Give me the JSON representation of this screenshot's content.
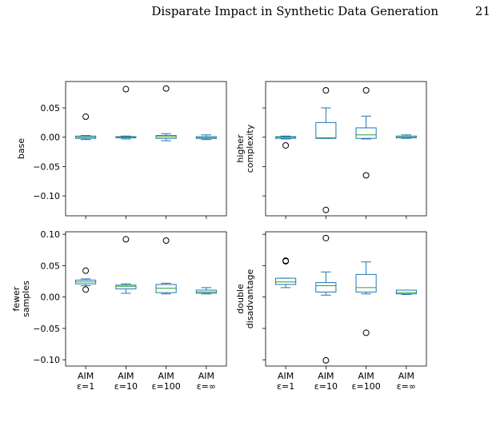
{
  "running_head": "Disparate Impact in Synthetic Data Generation",
  "page_number": "21",
  "chart_data": [
    {
      "type": "box",
      "ylabel": [
        "base"
      ],
      "box_color": "#1f77b4",
      "median_color": "#2ca02c",
      "ylim": [
        -0.134,
        0.095
      ],
      "yticks": [
        {
          "value": 0.05,
          "label": "0.05"
        },
        {
          "value": 0,
          "label": "0.00"
        },
        {
          "value": -0.05,
          "label": "−0.05"
        },
        {
          "value": -0.1,
          "label": "−0.10"
        }
      ],
      "boxes": [
        {
          "whislo": -0.004,
          "q1": -0.002,
          "med": 0,
          "q3": 0.002,
          "whishi": 0.003,
          "fliers": [
            0.035
          ]
        },
        {
          "whislo": -0.003,
          "q1": -0.001,
          "med": 0,
          "q3": 0.001,
          "whishi": 0.002,
          "fliers": [
            0.082
          ]
        },
        {
          "whislo": -0.006,
          "q1": -0.002,
          "med": 0.001,
          "q3": 0.003,
          "whishi": 0.006,
          "fliers": [
            0.083
          ]
        },
        {
          "whislo": -0.004,
          "q1": -0.002,
          "med": -0.001,
          "q3": 0.001,
          "whishi": 0.004,
          "fliers": []
        }
      ]
    },
    {
      "type": "box",
      "ylabel": [
        "higher",
        "complexity"
      ],
      "box_color": "#1f77b4",
      "median_color": "#2ca02c",
      "ylim": [
        -0.134,
        0.095
      ],
      "yticks": [
        0.05,
        0,
        -0.05,
        -0.1
      ],
      "boxes": [
        {
          "whislo": -0.003,
          "q1": -0.002,
          "med": 0,
          "q3": 0.001,
          "whishi": 0.002,
          "fliers": [
            -0.014
          ]
        },
        {
          "whislo": -0.002,
          "q1": -0.002,
          "med": -0.001,
          "q3": 0.025,
          "whishi": 0.05,
          "fliers": [
            0.08,
            -0.124
          ]
        },
        {
          "whislo": -0.003,
          "q1": -0.002,
          "med": 0.004,
          "q3": 0.016,
          "whishi": 0.036,
          "fliers": [
            0.08,
            -0.065
          ]
        },
        {
          "whislo": -0.002,
          "q1": -0.001,
          "med": 0,
          "q3": 0.002,
          "whishi": 0.004,
          "fliers": []
        }
      ]
    },
    {
      "type": "box",
      "ylabel": [
        "fewer",
        "samples"
      ],
      "box_color": "#1f77b4",
      "median_color": "#2ca02c",
      "ylim": [
        -0.11,
        0.104
      ],
      "yticks": [
        {
          "value": 0.1,
          "label": "0.10"
        },
        {
          "value": 0.05,
          "label": "0.05"
        },
        {
          "value": 0,
          "label": "0.00"
        },
        {
          "value": -0.05,
          "label": "−0.05"
        },
        {
          "value": -0.1,
          "label": "−0.10"
        }
      ],
      "categories": [
        [
          "AIM",
          "ε=1"
        ],
        [
          "AIM",
          "ε=10"
        ],
        [
          "AIM",
          "ε=100"
        ],
        [
          "AIM",
          "ε=∞"
        ]
      ],
      "boxes": [
        {
          "whislo": 0.018,
          "q1": 0.021,
          "med": 0.024,
          "q3": 0.027,
          "whishi": 0.029,
          "fliers": [
            0.042,
            0.012
          ]
        },
        {
          "whislo": 0.006,
          "q1": 0.013,
          "med": 0.017,
          "q3": 0.019,
          "whishi": 0.021,
          "fliers": [
            0.092
          ]
        },
        {
          "whislo": 0.005,
          "q1": 0.007,
          "med": 0.014,
          "q3": 0.02,
          "whishi": 0.022,
          "fliers": [
            0.09
          ]
        },
        {
          "whislo": 0.005,
          "q1": 0.006,
          "med": 0.008,
          "q3": 0.011,
          "whishi": 0.015,
          "fliers": []
        }
      ]
    },
    {
      "type": "box",
      "ylabel": [
        "double",
        "disadvantage"
      ],
      "box_color": "#1f77b4",
      "median_color": "#2ca02c",
      "ylim": [
        -0.11,
        0.104
      ],
      "yticks": [
        0.1,
        0.05,
        0,
        -0.05,
        -0.1
      ],
      "categories": [
        [
          "AIM",
          "ε=1"
        ],
        [
          "AIM",
          "ε=10"
        ],
        [
          "AIM",
          "ε=100"
        ],
        [
          "AIM",
          "ε=∞"
        ]
      ],
      "boxes": [
        {
          "whislo": 0.015,
          "q1": 0.02,
          "med": 0.024,
          "q3": 0.03,
          "whishi": 0.03,
          "fliers": [
            0.058,
            0.057
          ]
        },
        {
          "whislo": 0.003,
          "q1": 0.008,
          "med": 0.018,
          "q3": 0.023,
          "whishi": 0.04,
          "fliers": [
            0.094,
            -0.101
          ]
        },
        {
          "whislo": 0.005,
          "q1": 0.008,
          "med": 0.015,
          "q3": 0.036,
          "whishi": 0.056,
          "fliers": [
            -0.057
          ]
        },
        {
          "whislo": 0.004,
          "q1": 0.005,
          "med": 0.007,
          "q3": 0.011,
          "whishi": 0.011,
          "fliers": []
        }
      ]
    }
  ]
}
